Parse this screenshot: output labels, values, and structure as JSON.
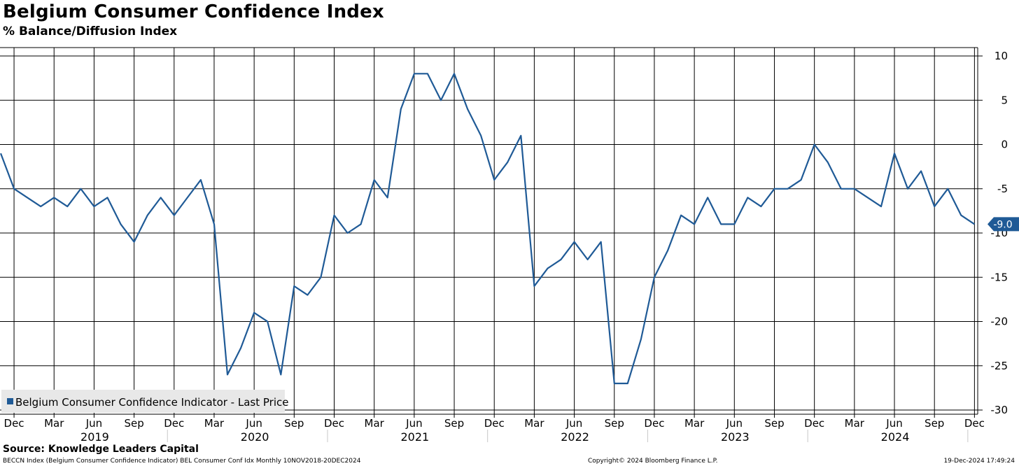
{
  "title": "Belgium Consumer Confidence Index",
  "subtitle": "% Balance/Diffusion Index",
  "chart_data": {
    "type": "line",
    "title": "Belgium Consumer Confidence Index",
    "ylabel": "% Balance/Diffusion Index",
    "ylim": [
      -30,
      10
    ],
    "yticks": [
      10,
      5,
      0,
      -5,
      -10,
      -15,
      -20,
      -25,
      -30
    ],
    "ytick_labels": [
      "10",
      "5",
      "0",
      "-5",
      "-10",
      "-15",
      "-20",
      "-25",
      "-30"
    ],
    "month_labels": [
      "Dec",
      "Mar",
      "Jun",
      "Sep",
      "Dec",
      "Mar",
      "Jun",
      "Sep",
      "Dec",
      "Mar",
      "Jun",
      "Sep",
      "Dec",
      "Mar",
      "Jun",
      "Sep",
      "Dec",
      "Mar",
      "Jun",
      "Sep",
      "Dec",
      "Mar",
      "Jun",
      "Sep",
      "Dec"
    ],
    "year_labels": [
      {
        "label": "2019",
        "month_index": 6
      },
      {
        "label": "2020",
        "month_index": 18
      },
      {
        "label": "2021",
        "month_index": 30
      },
      {
        "label": "2022",
        "month_index": 42
      },
      {
        "label": "2023",
        "month_index": 54
      },
      {
        "label": "2024",
        "month_index": 66
      }
    ],
    "start_month": "Nov 2018",
    "series": [
      {
        "name": "Belgium Consumer Confidence Indicator - Last Price",
        "color": "#1f5a96",
        "values": [
          -1,
          -5,
          -6,
          -7,
          -6,
          -7,
          -5,
          -7,
          -6,
          -9,
          -11,
          -8,
          -6,
          -8,
          -6,
          -4,
          -9,
          -26,
          -23,
          -19,
          -20,
          -26,
          -16,
          -17,
          -15,
          -8,
          -10,
          -9,
          -4,
          -6,
          4,
          8,
          8,
          5,
          8,
          4,
          1,
          -4,
          -2,
          1,
          -16,
          -14,
          -13,
          -11,
          -13,
          -11,
          -27,
          -27,
          -22,
          -15,
          -12,
          -8,
          -9,
          -6,
          -9,
          -9,
          -6,
          -7,
          -5,
          -5,
          -4,
          0,
          -2,
          -5,
          -5,
          -6,
          -7,
          -1,
          -5,
          -3,
          -7,
          -5,
          -8,
          -9
        ]
      }
    ],
    "last_value_label": "-9.0",
    "legend": {
      "label": "Belgium Consumer Confidence Indicator - Last Price",
      "position": "bottom-left"
    }
  },
  "source": "Source: Knowledge Leaders Capital",
  "footer": {
    "left": "BECCN Index (Belgium Consumer Confidence Indicator) BEL Consumer Conf Idx  Monthly 10NOV2018-20DEC2024",
    "middle": "Copyright© 2024 Bloomberg Finance L.P.",
    "right": "19-Dec-2024 17:49:24"
  },
  "colors": {
    "line": "#1f5a96",
    "grid": "#000000",
    "legend_bg": "#e8e8e8"
  }
}
